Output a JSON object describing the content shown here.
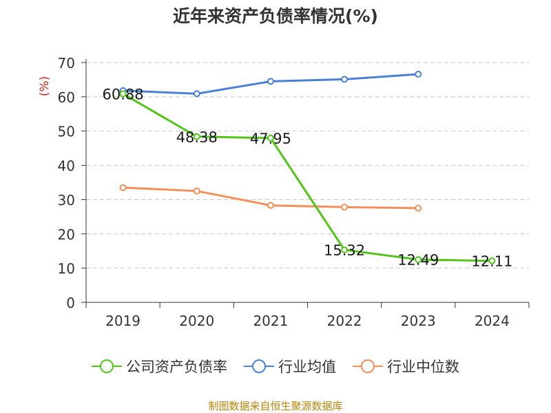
{
  "chart_data": {
    "type": "line",
    "title": "近年来资产负债率情况(%)",
    "ylabel": "(%)",
    "categories": [
      "2019",
      "2020",
      "2021",
      "2022",
      "2023",
      "2024"
    ],
    "ylim": [
      0,
      70
    ],
    "yticks": [
      0,
      10,
      20,
      30,
      40,
      50,
      60,
      70
    ],
    "grid": true,
    "legend_position": "bottom",
    "series": [
      {
        "name": "公司资产负债率",
        "color": "#52c41a",
        "values": [
          60.88,
          48.38,
          47.95,
          15.32,
          12.49,
          12.11
        ],
        "labels": [
          "60.88",
          "48.38",
          "47.95",
          "15.32",
          "12.49",
          "12.11"
        ]
      },
      {
        "name": "行业均值",
        "color": "#4a7fd6",
        "values": [
          61.8,
          60.9,
          64.5,
          65.1,
          66.6,
          null
        ]
      },
      {
        "name": "行业中位数",
        "color": "#f48f5a",
        "values": [
          33.5,
          32.5,
          28.3,
          27.8,
          27.5,
          null
        ]
      }
    ]
  },
  "source": "制图数据来自恒生聚源数据库"
}
